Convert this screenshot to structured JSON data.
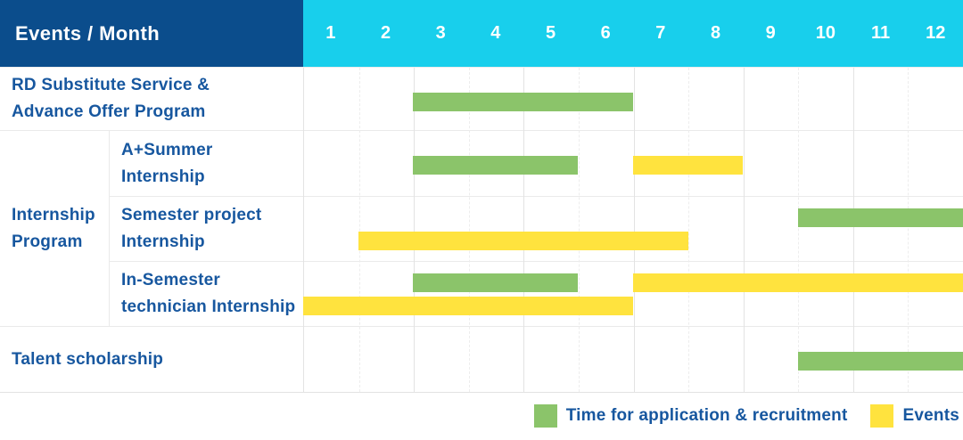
{
  "header": {
    "title": "Events / Month",
    "months": [
      "1",
      "2",
      "3",
      "4",
      "5",
      "6",
      "7",
      "8",
      "9",
      "10",
      "11",
      "12"
    ]
  },
  "colors": {
    "header_navy": "#0B4D8C",
    "header_cyan": "#18CFEC",
    "bar_green": "#8BC46A",
    "bar_yellow": "#FFE33E",
    "label_blue": "#17579F",
    "grid_solid": "#E3E3E3",
    "grid_dashed": "#EDEDED",
    "row_border": "#EAEAEA"
  },
  "group": {
    "label_lines": [
      "Internship",
      "Program"
    ]
  },
  "rows": [
    {
      "id": "rd-substitute",
      "label_lines": [
        "RD Substitute Service &",
        "Advance Offer Program"
      ],
      "lines": [
        [
          {
            "color": "green",
            "start": 3,
            "end": 6
          }
        ]
      ]
    },
    {
      "id": "a-plus-summer-internship",
      "group": "Internship Program",
      "label_lines": [
        "A+Summer",
        "Internship"
      ],
      "lines": [
        [
          {
            "color": "green",
            "start": 3,
            "end": 5
          },
          {
            "color": "yellow",
            "start": 7,
            "end": 8
          }
        ]
      ]
    },
    {
      "id": "semester-project-internship",
      "group": "Internship Program",
      "label_lines": [
        "Semester project",
        "Internship"
      ],
      "lines": [
        [
          {
            "color": "green",
            "start": 10,
            "end": 12
          }
        ],
        [
          {
            "color": "yellow",
            "start": 2,
            "end": 7
          }
        ]
      ]
    },
    {
      "id": "in-semester-technician-internship",
      "group": "Internship Program",
      "label_lines": [
        "In-Semester",
        "technician Internship"
      ],
      "lines": [
        [
          {
            "color": "green",
            "start": 3,
            "end": 5
          },
          {
            "color": "yellow",
            "start": 7,
            "end": 12
          }
        ],
        [
          {
            "color": "yellow",
            "start": 1,
            "end": 6
          }
        ]
      ]
    },
    {
      "id": "talent-scholarship",
      "label_lines": [
        "Talent scholarship"
      ],
      "lines": [
        [
          {
            "color": "green",
            "start": 10,
            "end": 12
          }
        ]
      ]
    }
  ],
  "legend": {
    "items": [
      {
        "label": "Time for application & recruitment",
        "color": "bar_green"
      },
      {
        "label": "Events",
        "color": "bar_yellow"
      }
    ]
  },
  "chart_data": {
    "type": "bar",
    "subtype": "gantt-schedule",
    "title": "Events / Month",
    "x": {
      "label": "Month",
      "ticks": [
        1,
        2,
        3,
        4,
        5,
        6,
        7,
        8,
        9,
        10,
        11,
        12
      ],
      "range": [
        1,
        12
      ]
    },
    "grid": true,
    "legend_position": "bottom-right",
    "series_colors": {
      "Time for application & recruitment": "#8BC46A",
      "Events": "#FFE33E"
    },
    "rows": [
      {
        "label": "RD Substitute Service & Advance Offer Program",
        "group": null,
        "segments": [
          {
            "series": "Time for application & recruitment",
            "start_month": 3,
            "end_month": 6
          }
        ]
      },
      {
        "label": "A+Summer Internship",
        "group": "Internship Program",
        "segments": [
          {
            "series": "Time for application & recruitment",
            "start_month": 3,
            "end_month": 5
          },
          {
            "series": "Events",
            "start_month": 7,
            "end_month": 8
          }
        ]
      },
      {
        "label": "Semester project Internship",
        "group": "Internship Program",
        "segments": [
          {
            "series": "Time for application & recruitment",
            "start_month": 10,
            "end_month": 12
          },
          {
            "series": "Events",
            "start_month": 2,
            "end_month": 7
          }
        ]
      },
      {
        "label": "In-Semester technician Internship",
        "group": "Internship Program",
        "segments": [
          {
            "series": "Time for application & recruitment",
            "start_month": 3,
            "end_month": 5
          },
          {
            "series": "Events",
            "start_month": 7,
            "end_month": 12
          },
          {
            "series": "Events",
            "start_month": 1,
            "end_month": 6
          }
        ]
      },
      {
        "label": "Talent scholarship",
        "group": null,
        "segments": [
          {
            "series": "Time for application & recruitment",
            "start_month": 10,
            "end_month": 12
          }
        ]
      }
    ]
  }
}
